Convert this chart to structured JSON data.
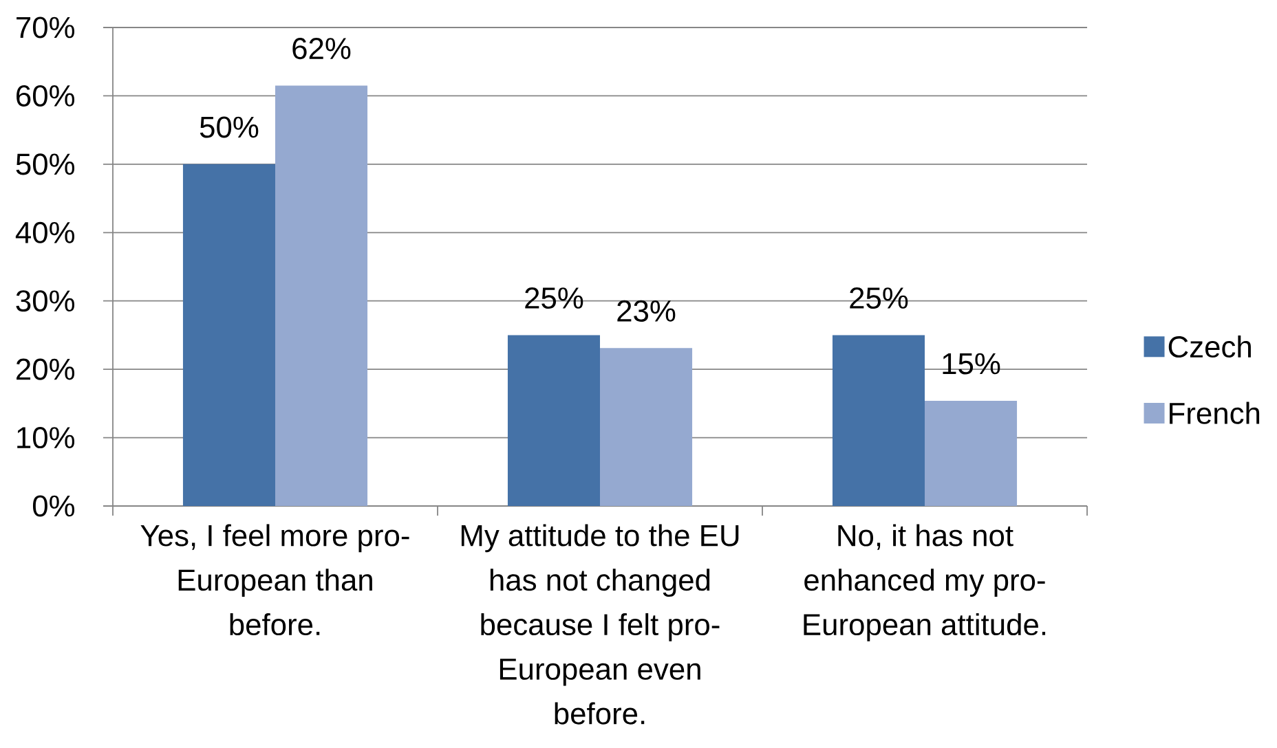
{
  "chart_data": {
    "type": "bar",
    "categories": [
      "Yes, I feel more pro-European than before.",
      "My attitude to the EU has not changed because I felt pro-European even before.",
      "No, it has not enhanced my pro-European attitude."
    ],
    "series": [
      {
        "name": "Czech",
        "color": "#4572a7",
        "values": [
          50,
          25,
          25
        ],
        "value_labels": [
          "50%",
          "25%",
          "25%"
        ]
      },
      {
        "name": "French",
        "color": "#95a9d0",
        "values": [
          61.5,
          23.1,
          15.4
        ],
        "value_labels": [
          "62%",
          "23%",
          "15%"
        ]
      }
    ],
    "ylim": [
      0,
      70
    ],
    "yticks": [
      {
        "value": 0,
        "label": "0%"
      },
      {
        "value": 10,
        "label": "10%"
      },
      {
        "value": 20,
        "label": "20%"
      },
      {
        "value": 30,
        "label": "30%"
      },
      {
        "value": 40,
        "label": "40%"
      },
      {
        "value": 50,
        "label": "50%"
      },
      {
        "value": 60,
        "label": "60%"
      },
      {
        "value": 70,
        "label": "70%"
      }
    ],
    "grid": "y",
    "legend": "right"
  }
}
